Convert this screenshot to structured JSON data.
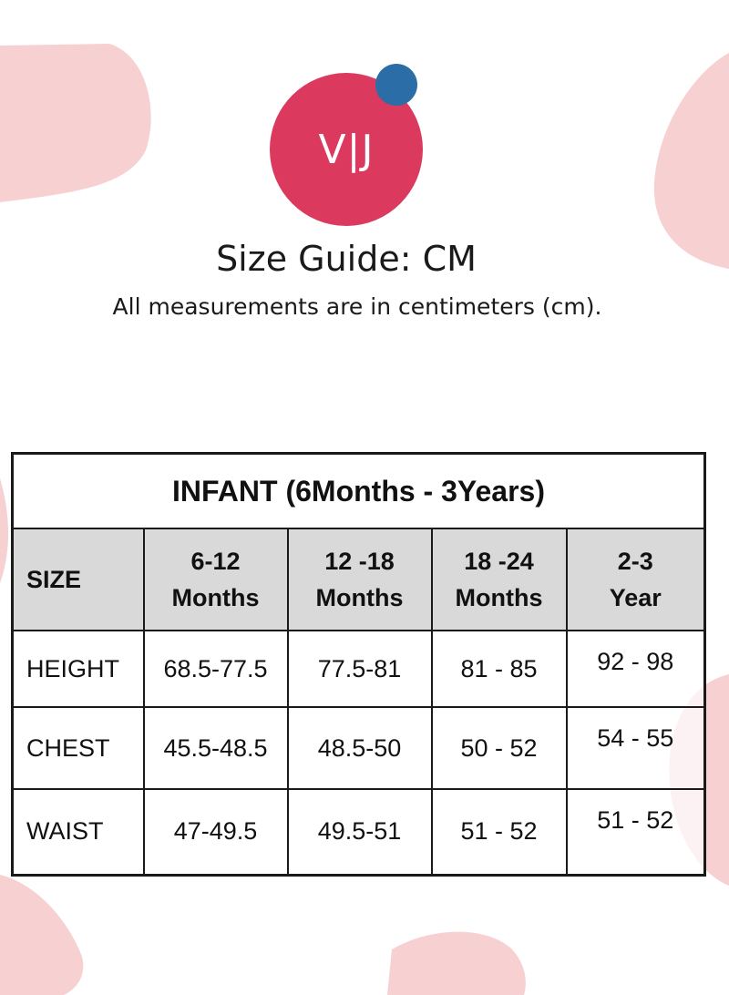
{
  "logo": {
    "text": "V|J",
    "primary_color": "#db3a5e",
    "dot_color": "#2b6da7"
  },
  "title": "Size Guide: CM",
  "subtitle": "All measurements are in centimeters (cm).",
  "table": {
    "caption": "INFANT (6Months - 3Years)",
    "header": {
      "size": "SIZE",
      "columns": [
        {
          "line1": "6-12",
          "line2": "Months"
        },
        {
          "line1": "12 -18",
          "line2": "Months"
        },
        {
          "line1": "18 -24",
          "line2": "Months"
        },
        {
          "line1": "2-3",
          "line2": "Year"
        }
      ]
    },
    "rows": [
      {
        "label": "HEIGHT",
        "values": [
          "68.5-77.5",
          "77.5-81",
          "81 - 85",
          "92 - 98"
        ]
      },
      {
        "label": "CHEST",
        "values": [
          "45.5-48.5",
          "48.5-50",
          "50 - 52",
          "54 - 55"
        ]
      },
      {
        "label": "WAIST",
        "values": [
          "47-49.5",
          "49.5-51",
          "51 - 52",
          "51 - 52"
        ]
      }
    ]
  },
  "colors": {
    "blob": "#f7d0d2",
    "header_bg": "#d6d6d6",
    "border": "#1a1a1a"
  }
}
